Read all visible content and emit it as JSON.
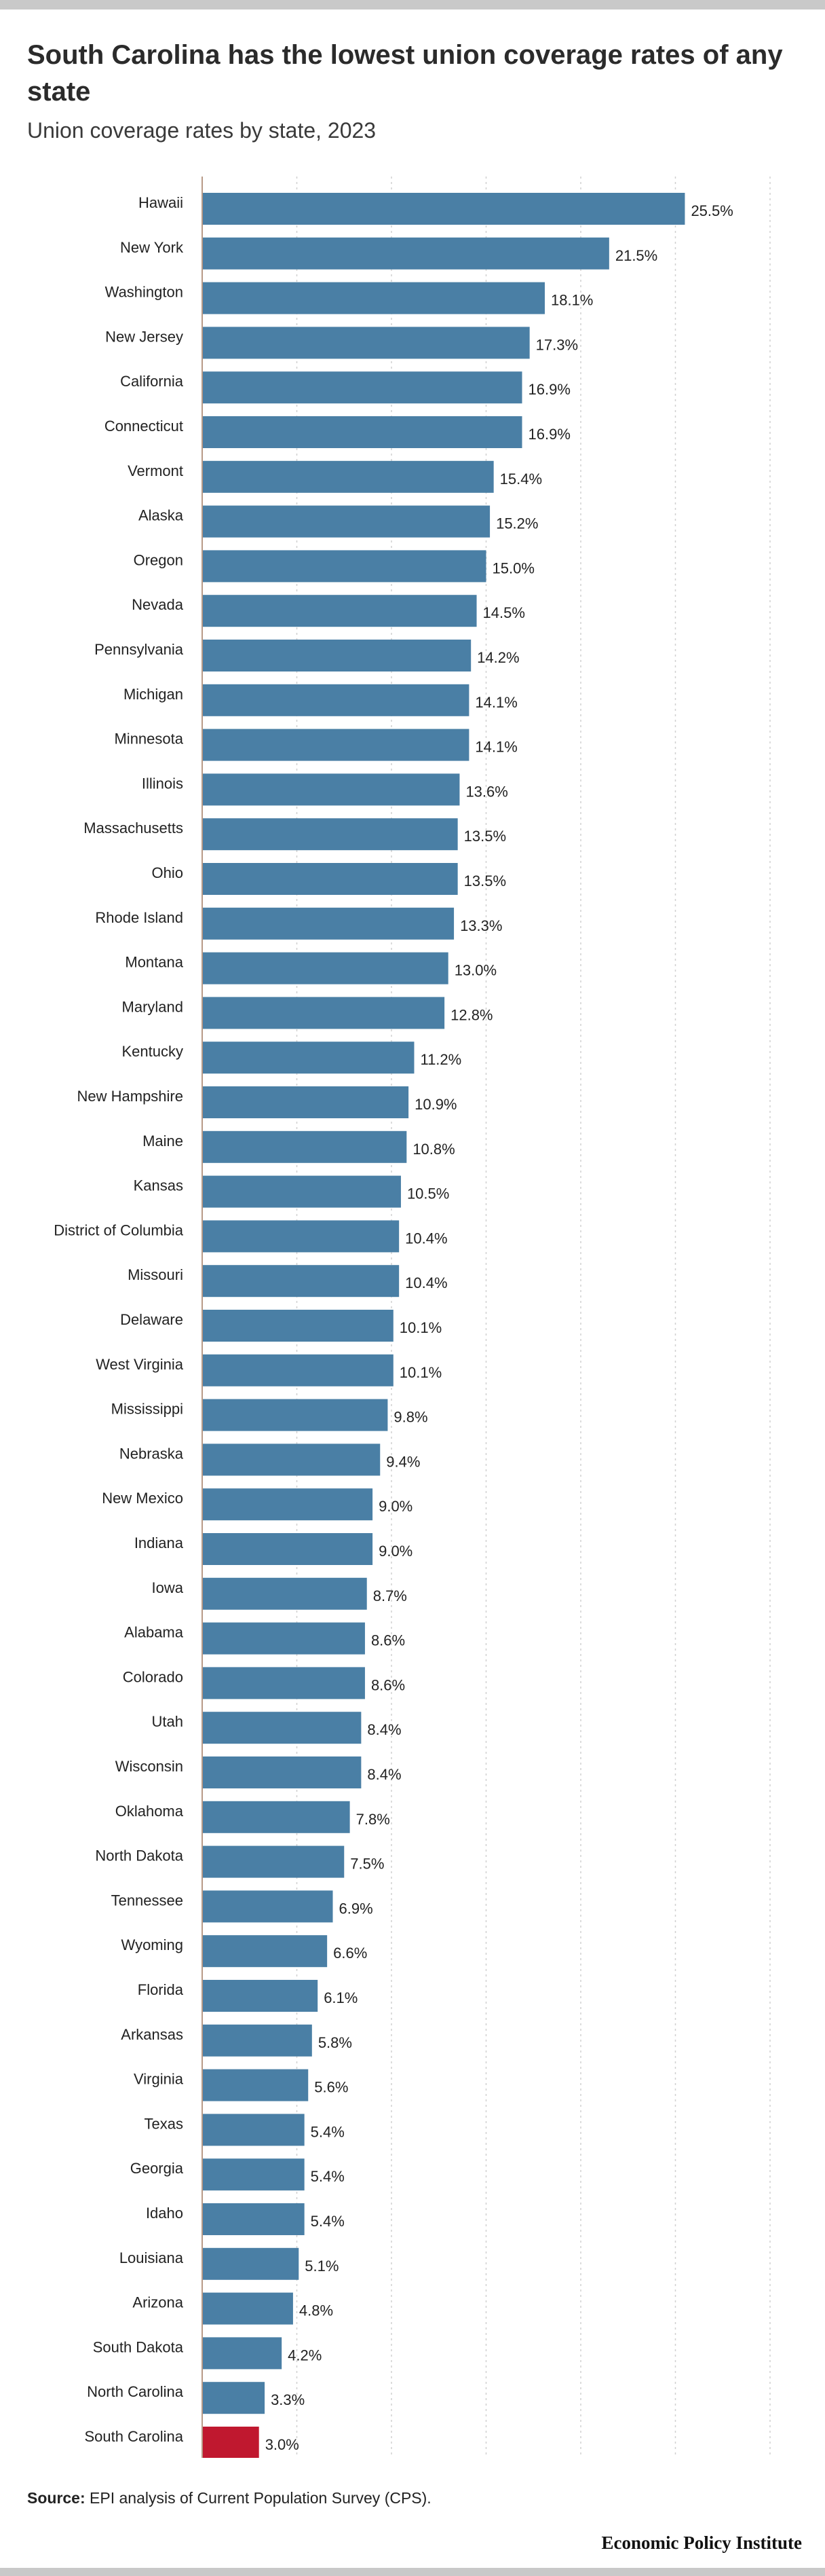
{
  "header": {
    "title": "South Carolina has the lowest union coverage rates of any state",
    "subtitle": "Union coverage rates by state, 2023"
  },
  "footer": {
    "source_label": "Source:",
    "source_text": "EPI analysis of Current Population Survey (CPS).",
    "organization": "Economic Policy Institute"
  },
  "colors": {
    "bar": "#4a7fa5",
    "highlight": "#c0182f",
    "grid": "#d0d0d0",
    "axis": "#b89a87"
  },
  "chart_data": {
    "type": "bar",
    "orientation": "horizontal",
    "categories": [
      "Hawaii",
      "New York",
      "Washington",
      "New Jersey",
      "California",
      "Connecticut",
      "Vermont",
      "Alaska",
      "Oregon",
      "Nevada",
      "Pennsylvania",
      "Michigan",
      "Minnesota",
      "Illinois",
      "Massachusetts",
      "Ohio",
      "Rhode Island",
      "Montana",
      "Maryland",
      "Kentucky",
      "New Hampshire",
      "Maine",
      "Kansas",
      "District of Columbia",
      "Missouri",
      "Delaware",
      "West Virginia",
      "Mississippi",
      "Nebraska",
      "New Mexico",
      "Indiana",
      "Iowa",
      "Alabama",
      "Colorado",
      "Utah",
      "Wisconsin",
      "Oklahoma",
      "North Dakota",
      "Tennessee",
      "Wyoming",
      "Florida",
      "Arkansas",
      "Virginia",
      "Texas",
      "Georgia",
      "Idaho",
      "Louisiana",
      "Arizona",
      "South Dakota",
      "North Carolina",
      "South Carolina"
    ],
    "values": [
      25.5,
      21.5,
      18.1,
      17.3,
      16.9,
      16.9,
      15.4,
      15.2,
      15.0,
      14.5,
      14.2,
      14.1,
      14.1,
      13.6,
      13.5,
      13.5,
      13.3,
      13.0,
      12.8,
      11.2,
      10.9,
      10.8,
      10.5,
      10.4,
      10.4,
      10.1,
      10.1,
      9.8,
      9.4,
      9.0,
      9.0,
      8.7,
      8.6,
      8.6,
      8.4,
      8.4,
      7.8,
      7.5,
      6.9,
      6.6,
      6.1,
      5.8,
      5.6,
      5.4,
      5.4,
      5.4,
      5.1,
      4.8,
      4.2,
      3.3,
      3.0
    ],
    "value_labels": [
      "25.5%",
      "21.5%",
      "18.1%",
      "17.3%",
      "16.9%",
      "16.9%",
      "15.4%",
      "15.2%",
      "15.0%",
      "14.5%",
      "14.2%",
      "14.1%",
      "14.1%",
      "13.6%",
      "13.5%",
      "13.5%",
      "13.3%",
      "13.0%",
      "12.8%",
      "11.2%",
      "10.9%",
      "10.8%",
      "10.5%",
      "10.4%",
      "10.4%",
      "10.1%",
      "10.1%",
      "9.8%",
      "9.4%",
      "9.0%",
      "9.0%",
      "8.7%",
      "8.6%",
      "8.6%",
      "8.4%",
      "8.4%",
      "7.8%",
      "7.5%",
      "6.9%",
      "6.6%",
      "6.1%",
      "5.8%",
      "5.6%",
      "5.4%",
      "5.4%",
      "5.4%",
      "5.1%",
      "4.8%",
      "4.2%",
      "3.3%",
      "3.0%"
    ],
    "highlight_category": "South Carolina",
    "xlim": [
      0,
      30
    ],
    "grid": true,
    "grid_step": 5
  }
}
